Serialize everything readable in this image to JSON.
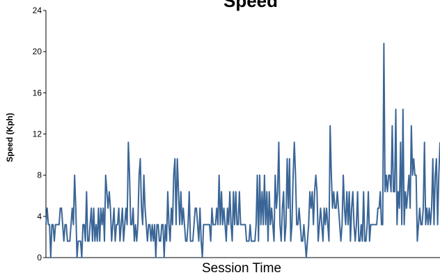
{
  "chart_data": {
    "type": "line",
    "title": "Speed",
    "xlabel": "Session Time",
    "ylabel": "Speed (Kph)",
    "ylim": [
      0,
      24
    ],
    "yticks": [
      0,
      4,
      8,
      12,
      16,
      20,
      24
    ],
    "grid": false,
    "legend": "none",
    "series": [
      {
        "color": "#3a6596",
        "values": [
          3.2,
          4.8,
          3.2,
          3.2,
          0,
          3.2,
          3.2,
          1.6,
          3.2,
          3.2,
          3.2,
          3.2,
          4.8,
          4.8,
          3.2,
          1.6,
          3.2,
          3.2,
          1.6,
          1.6,
          1.6,
          3.2,
          4.8,
          3.2,
          8.0,
          4.8,
          0,
          1.6,
          1.6,
          1.6,
          0,
          3.2,
          3.2,
          1.6,
          6.4,
          1.6,
          1.6,
          3.2,
          4.8,
          1.6,
          4.8,
          1.6,
          3.2,
          1.6,
          4.8,
          1.6,
          4.8,
          3.2,
          4.8,
          1.6,
          8.0,
          6.4,
          4.8,
          6.4,
          4.8,
          1.6,
          3.2,
          4.8,
          1.6,
          3.2,
          3.2,
          4.8,
          1.6,
          3.2,
          4.8,
          1.6,
          3.2,
          4.8,
          3.2,
          11.2,
          8.0,
          3.2,
          3.2,
          4.8,
          1.6,
          3.2,
          1.6,
          3.2,
          8.0,
          9.6,
          4.8,
          3.2,
          8.0,
          4.8,
          3.2,
          1.6,
          3.2,
          3.2,
          1.6,
          3.2,
          1.6,
          3.2,
          0,
          3.2,
          3.2,
          1.6,
          1.6,
          3.2,
          3.2,
          0,
          3.2,
          1.6,
          6.4,
          3.2,
          1.6,
          4.8,
          3.2,
          8.0,
          9.6,
          3.2,
          9.6,
          6.4,
          3.2,
          6.4,
          3.2,
          4.8,
          3.2,
          1.6,
          1.6,
          3.2,
          6.4,
          1.6,
          1.6,
          1.6,
          3.2,
          4.8,
          4.8,
          3.2,
          1.6,
          4.8,
          1.6,
          0,
          3.2,
          3.2,
          3.2,
          3.2,
          3.2,
          3.2,
          1.6,
          4.8,
          3.2,
          3.2,
          3.2,
          4.8,
          3.2,
          8.0,
          3.2,
          6.4,
          3.2,
          4.8,
          3.2,
          1.6,
          4.8,
          3.2,
          6.4,
          3.2,
          1.6,
          6.4,
          3.2,
          6.4,
          3.2,
          3.2,
          6.4,
          3.2,
          3.2,
          3.2,
          3.2,
          3.2,
          1.6,
          1.6,
          1.6,
          3.2,
          1.6,
          1.6,
          1.6,
          1.6,
          3.2,
          8.0,
          1.6,
          8.0,
          3.2,
          6.4,
          3.2,
          8.0,
          3.2,
          6.4,
          1.6,
          6.4,
          3.2,
          4.8,
          3.2,
          1.6,
          8.0,
          4.8,
          6.4,
          11.2,
          3.2,
          1.6,
          4.8,
          6.4,
          1.6,
          3.2,
          9.6,
          4.8,
          9.6,
          1.6,
          3.2,
          8.0,
          11.2,
          8.0,
          3.2,
          3.2,
          4.8,
          3.2,
          1.6,
          1.6,
          3.2,
          1.6,
          0,
          1.6,
          3.2,
          6.4,
          4.8,
          6.4,
          3.2,
          6.4,
          8.0,
          6.4,
          1.6,
          3.2,
          4.8,
          3.2,
          1.6,
          4.8,
          3.2,
          4.8,
          3.2,
          1.6,
          12.8,
          8.0,
          4.8,
          6.4,
          4.8,
          4.8,
          6.4,
          4.8,
          3.2,
          1.6,
          3.2,
          8.0,
          4.8,
          3.2,
          6.4,
          3.2,
          6.4,
          1.6,
          4.8,
          6.4,
          3.2,
          1.6,
          3.2,
          6.4,
          1.6,
          1.6,
          3.2,
          1.6,
          6.4,
          1.6,
          1.6,
          3.2,
          6.4,
          1.6,
          3.2,
          3.2,
          3.2,
          3.2,
          3.2,
          3.2,
          4.8,
          4.8,
          6.4,
          3.2,
          3.2,
          20.8,
          6.4,
          8.0,
          6.4,
          8.0,
          8.0,
          6.4,
          12.8,
          6.4,
          6.4,
          14.4,
          3.2,
          6.4,
          4.8,
          11.2,
          3.2,
          14.4,
          3.2,
          6.4,
          4.8,
          6.4,
          8.0,
          4.8,
          12.8,
          8.0,
          9.6,
          8.0,
          8.0,
          1.6,
          3.2,
          4.8,
          3.2,
          3.2,
          4.8,
          11.2,
          3.2,
          4.8,
          3.2,
          4.8,
          3.2,
          4.8,
          9.6,
          3.2,
          8.0,
          9.6,
          3.2,
          8.0,
          11.2
        ]
      }
    ]
  }
}
